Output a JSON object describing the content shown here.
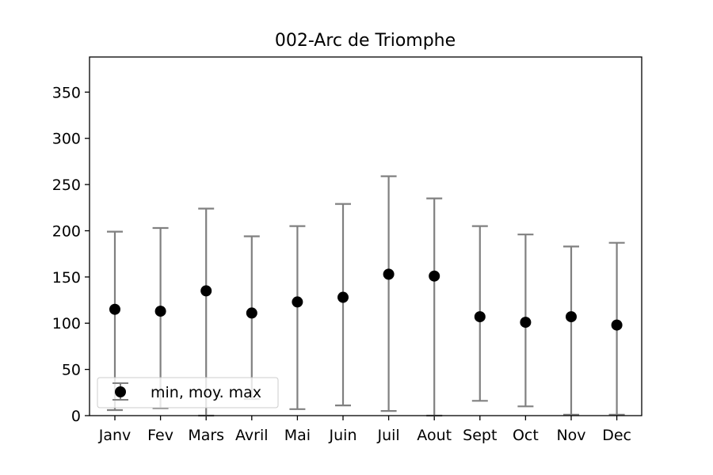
{
  "chart_data": {
    "type": "errorbar",
    "title": "002-Arc de Triomphe",
    "xlabel": "",
    "ylabel": "",
    "categories": [
      "Janv",
      "Fev",
      "Mars",
      "Avril",
      "Mai",
      "Juin",
      "Juil",
      "Aout",
      "Sept",
      "Oct",
      "Nov",
      "Dec"
    ],
    "series": [
      {
        "name": "min, moy. max",
        "mean": [
          115,
          113,
          135,
          111,
          123,
          128,
          153,
          151,
          107,
          101,
          107,
          98
        ],
        "min": [
          6,
          8,
          0,
          18,
          7,
          11,
          5,
          0,
          16,
          10,
          1,
          1
        ],
        "max": [
          199,
          203,
          224,
          194,
          205,
          229,
          259,
          235,
          205,
          196,
          183,
          187
        ]
      }
    ],
    "ylim": [
      0,
      388
    ],
    "yticks": [
      0,
      50,
      100,
      150,
      200,
      250,
      300,
      350
    ],
    "grid": false,
    "legend_position": "lower-left",
    "colors": {
      "marker": "#000000",
      "errorbar": "#808080"
    }
  }
}
